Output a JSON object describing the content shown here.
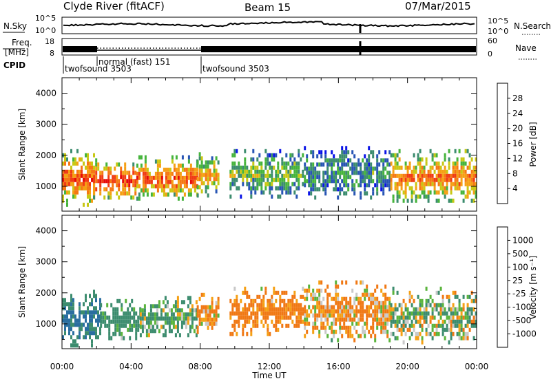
{
  "header": {
    "station": "Clyde River (fitACF)",
    "beam": "Beam 15",
    "date": "07/Mar/2015"
  },
  "top_panels": {
    "noise": {
      "left_label": "N.Sky",
      "left_ticks": [
        "10^5",
        "10^0"
      ],
      "right_label": "N.Search",
      "right_ticks": [
        "10^5",
        "10^0"
      ]
    },
    "freq": {
      "left_label": "Freq.",
      "left_unit": "[MHz]",
      "left_ticks": [
        "18",
        "8"
      ],
      "right_label": "Nave",
      "right_ticks": [
        "60",
        "0"
      ]
    },
    "cpid": {
      "label": "CPID",
      "segments": [
        {
          "label": "twofsound 3503"
        },
        {
          "label": "normal (fast) 151"
        },
        {
          "label": "twofsound 3503"
        }
      ]
    }
  },
  "colors": {
    "power_scale": [
      "#0a14e6",
      "#2855b4",
      "#3c8c6e",
      "#46b43c",
      "#c8c814",
      "#f5a014",
      "#f57814",
      "#f03c14",
      "#e60a0a"
    ],
    "velocity_scale": [
      "#1e3cc8",
      "#2a6ea0",
      "#3c8c6e",
      "#5ab43c",
      "#c8c8c8",
      "#f5a014",
      "#f07814",
      "#f04614",
      "#e60a0a"
    ],
    "frame": "#000000"
  },
  "chart_data": [
    {
      "type": "heatmap",
      "name": "power",
      "xlabel": "Time UT",
      "ylabel": "Slant Range [km]",
      "xlim": [
        0,
        24
      ],
      "ylim": [
        200,
        4500
      ],
      "yticks": [
        1000,
        2000,
        3000,
        4000
      ],
      "colorbar": {
        "label": "Power [dB]",
        "range": [
          0,
          32
        ],
        "tick_labels": [
          "4",
          "8",
          "12",
          "16",
          "20",
          "24",
          "28"
        ]
      },
      "echo_bands": [
        {
          "t0": 0.0,
          "t1": 1.8,
          "r0": 400,
          "r1": 2200,
          "core_power": 26
        },
        {
          "t0": 1.8,
          "t1": 4.3,
          "r0": 600,
          "r1": 1900,
          "core_power": 28
        },
        {
          "t0": 4.3,
          "t1": 7.8,
          "r0": 600,
          "r1": 2000,
          "core_power": 26
        },
        {
          "t0": 7.8,
          "t1": 9.0,
          "r0": 700,
          "r1": 2100,
          "core_power": 20
        },
        {
          "t0": 9.7,
          "t1": 14.0,
          "r0": 700,
          "r1": 2200,
          "core_power": 14
        },
        {
          "t0": 14.0,
          "t1": 19.0,
          "r0": 600,
          "r1": 2300,
          "core_power": 10
        },
        {
          "t0": 19.0,
          "t1": 24.0,
          "r0": 500,
          "r1": 2200,
          "core_power": 24
        }
      ]
    },
    {
      "type": "heatmap",
      "name": "velocity",
      "xlabel": "Time UT",
      "ylabel": "Slant Range [km]",
      "xlim": [
        0,
        24
      ],
      "ylim": [
        200,
        4500
      ],
      "yticks": [
        1000,
        2000,
        3000,
        4000
      ],
      "x_tick_labels": [
        "00:00",
        "04:00",
        "08:00",
        "12:00",
        "16:00",
        "20:00",
        "00:00"
      ],
      "colorbar": {
        "label": "Velocity  [m s⁻¹]",
        "tick_labels": [
          "1000",
          "500",
          "100",
          "25",
          "-25",
          "-100",
          "-500",
          "-1000"
        ]
      },
      "echo_bands": [
        {
          "t0": 0.0,
          "t1": 2.2,
          "r0": 300,
          "r1": 2100,
          "core_velocity": 600
        },
        {
          "t0": 2.2,
          "t1": 4.5,
          "r0": 600,
          "r1": 1800,
          "core_velocity": 300
        },
        {
          "t0": 4.5,
          "t1": 7.8,
          "r0": 600,
          "r1": 1900,
          "core_velocity": 150
        },
        {
          "t0": 7.8,
          "t1": 9.0,
          "r0": 700,
          "r1": 2000,
          "core_velocity": -150
        },
        {
          "t0": 9.7,
          "t1": 14.0,
          "r0": 700,
          "r1": 2200,
          "core_velocity": -250
        },
        {
          "t0": 14.0,
          "t1": 19.0,
          "r0": 500,
          "r1": 2400,
          "core_velocity": -120
        },
        {
          "t0": 19.0,
          "t1": 24.0,
          "r0": 400,
          "r1": 2200,
          "core_velocity": 60
        }
      ]
    }
  ]
}
